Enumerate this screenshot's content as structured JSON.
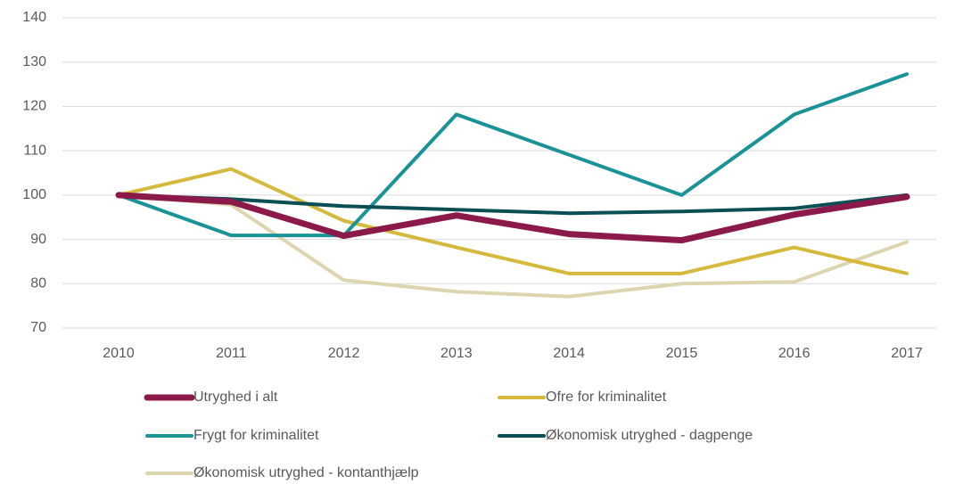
{
  "chart_data": {
    "type": "line",
    "categories": [
      "2010",
      "2011",
      "2012",
      "2013",
      "2014",
      "2015",
      "2016",
      "2017"
    ],
    "series": [
      {
        "name": "Utryghed i alt",
        "color": "#8b1a4a",
        "values": [
          100,
          98.5,
          90.8,
          95.4,
          91.2,
          89.8,
          95.6,
          99.6
        ]
      },
      {
        "name": "Ofre for kriminalitet",
        "color": "#d4b93c",
        "values": [
          100,
          105.9,
          94.2,
          88.2,
          82.3,
          82.3,
          88.2,
          82.3
        ]
      },
      {
        "name": "Frygt for kriminalitet",
        "color": "#1a9396",
        "values": [
          100,
          90.9,
          90.9,
          118.2,
          109.1,
          100,
          118.2,
          127.3
        ]
      },
      {
        "name": "Økonomisk utryghed - dagpenge",
        "color": "#0b4f55",
        "values": [
          100,
          99.1,
          97.5,
          96.7,
          95.9,
          96.3,
          97.0,
          100
        ]
      },
      {
        "name": "Økonomisk utryghed - kontanthjælp",
        "color": "#ddd5b0",
        "values": [
          100,
          97.8,
          80.8,
          78.2,
          77.1,
          80.0,
          80.4,
          89.4
        ]
      }
    ],
    "ylim": [
      70,
      140
    ],
    "yticks": [
      70,
      80,
      90,
      100,
      110,
      120,
      130,
      140
    ],
    "grid": true
  }
}
